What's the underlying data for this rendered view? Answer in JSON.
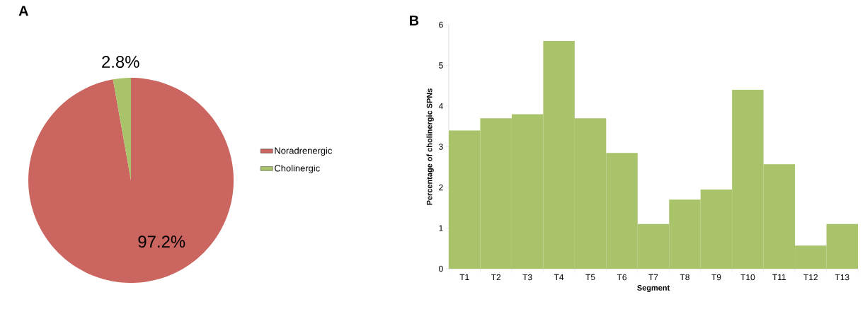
{
  "chart_data": [
    {
      "type": "pie",
      "title": "A",
      "categories": [
        "Noradrenergic",
        "Cholinergic"
      ],
      "values": [
        97.2,
        2.8
      ],
      "colors": [
        "#cb6560",
        "#a9c36a"
      ],
      "value_labels": [
        "97.2%",
        "2.8%"
      ],
      "legend": "right"
    },
    {
      "type": "bar",
      "title": "B",
      "xlabel": "Segment",
      "ylabel": "Percentage of cholinergic SPNs",
      "categories": [
        "T1",
        "T2",
        "T3",
        "T4",
        "T5",
        "T6",
        "T7",
        "T8",
        "T9",
        "T10",
        "T11",
        "T12",
        "T13"
      ],
      "values": [
        3.4,
        3.7,
        3.8,
        5.6,
        3.7,
        2.85,
        1.1,
        1.7,
        1.95,
        4.4,
        2.57,
        0.57,
        1.1
      ],
      "color": "#a9c36a",
      "ylim": [
        0,
        6
      ],
      "yticks": [
        0,
        1,
        2,
        3,
        4,
        5,
        6
      ]
    }
  ]
}
